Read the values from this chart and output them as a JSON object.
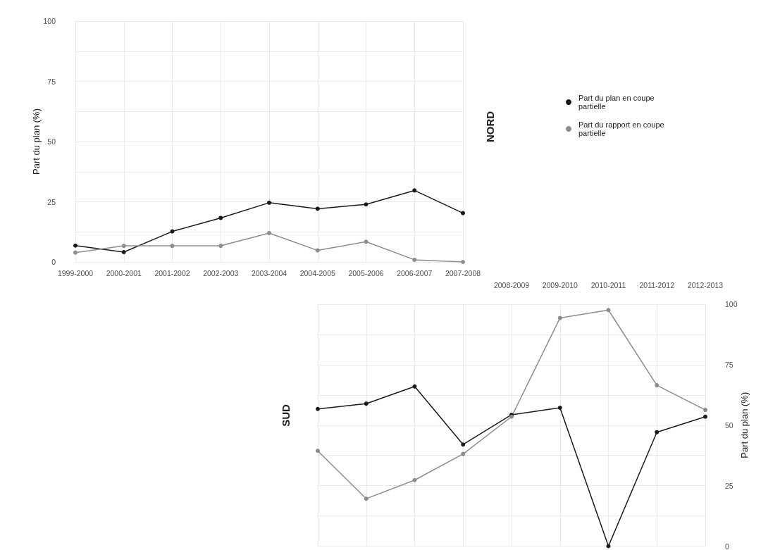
{
  "chart_data": [
    {
      "type": "line",
      "title": "NORD",
      "ylabel": "Part du plan (%)",
      "categories": [
        "1999-2000",
        "2000-2001",
        "2001-2002",
        "2002-2003",
        "2003-2004",
        "2004-2005",
        "2005-2006",
        "2006-2007",
        "2007-2008"
      ],
      "series": [
        {
          "name": "Part du plan en coupe partielle",
          "color": "#1a1a1a",
          "values": [
            6.8,
            4.1,
            12.7,
            18.3,
            24.6,
            22.1,
            23.9,
            29.7,
            20.3
          ]
        },
        {
          "name": "Part du rapport en coupe partielle",
          "color": "#8c8c8c",
          "values": [
            3.9,
            6.7,
            6.7,
            6.7,
            12.0,
            4.8,
            8.4,
            0.9,
            0
          ]
        }
      ],
      "ylim": [
        0,
        100
      ],
      "yticks": [
        0,
        {
          "value": 12.5,
          "label": null
        },
        25,
        {
          "value": 37.5,
          "label": null
        },
        50,
        {
          "value": 62.5,
          "label": null
        },
        75,
        {
          "value": 87.5,
          "label": null
        },
        100
      ],
      "grid": true,
      "legend": "right",
      "marker": "circle",
      "line_style": "solid"
    },
    {
      "type": "line",
      "title": "SUD",
      "y2label": "Part du plan (%)",
      "categories": [
        null,
        null,
        null,
        null,
        "2008-2009",
        "2009-2010",
        "2010-2011",
        "2011-2012",
        "2012-2013"
      ],
      "series": [
        {
          "color": "#1a1a1a",
          "axis": "y2",
          "values": [
            56.7,
            58.9,
            66.0,
            42.0,
            54.3,
            57.2,
            0,
            47.1,
            53.5
          ]
        },
        {
          "color": "#8c8c8c",
          "axis": "y2",
          "values": [
            39.4,
            19.6,
            27.3,
            38.1,
            53.5,
            94.3,
            97.6,
            66.5,
            56.3
          ]
        }
      ],
      "y2lim": [
        0,
        100
      ],
      "y2ticks": [
        0,
        {
          "value": 12.5,
          "label": null
        },
        25,
        {
          "value": 37.5,
          "label": null
        },
        50,
        {
          "value": 62.5,
          "label": null
        },
        75,
        {
          "value": 87.5,
          "label": null
        },
        100
      ],
      "grid": true,
      "legend": false,
      "marker": "circle",
      "line_style": "solid"
    }
  ]
}
